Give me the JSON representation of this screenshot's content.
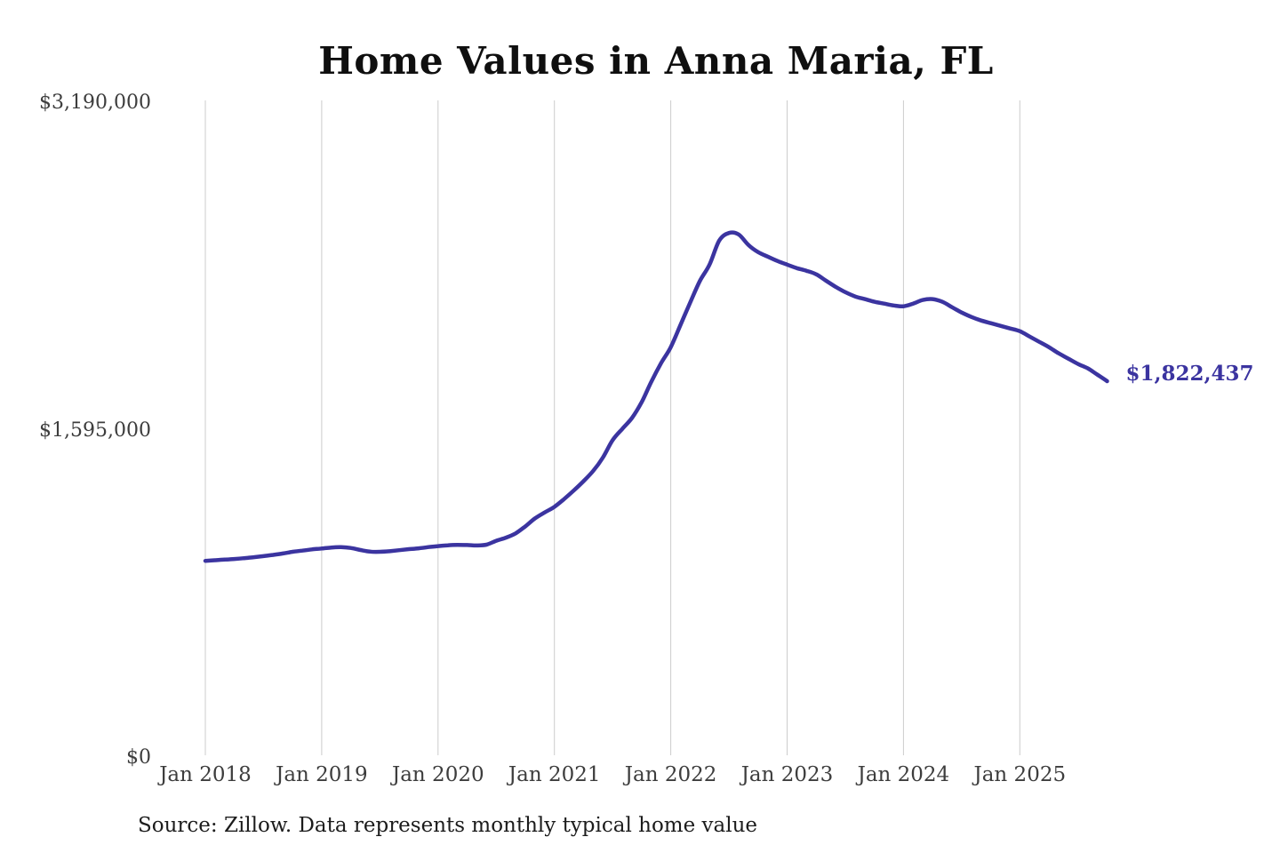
{
  "page": {
    "title": "Home Values in Anna Maria, FL",
    "source_note": "Source: Zillow. Data represents monthly typical home value"
  },
  "chart_data": {
    "type": "line",
    "title": "Home Values in Anna Maria, FL",
    "xlabel": "",
    "ylabel": "",
    "grid": "vertical-only",
    "legend": "none",
    "ylim": [
      0,
      3190000
    ],
    "y_ticks": [
      {
        "label": "$0",
        "value": 0
      },
      {
        "label": "$1,595,000",
        "value": 1595000
      },
      {
        "label": "$3,190,000",
        "value": 3190000
      }
    ],
    "x_tick_labels": [
      "Jan 2018",
      "Jan 2019",
      "Jan 2020",
      "Jan 2021",
      "Jan 2022",
      "Jan 2023",
      "Jan 2024",
      "Jan 2025"
    ],
    "end_label": "$1,822,437",
    "last_value": 1822437,
    "colors": {
      "line": "#3b34a0",
      "end_label": "#3b34a0",
      "grid": "#cccccc",
      "tick_text": "#3d3d3d",
      "title_text": "#0f0f0f",
      "source_text": "#1c1c1c"
    },
    "series": [
      {
        "name": "Monthly typical home value",
        "dates": [
          "2018-01",
          "2018-02",
          "2018-03",
          "2018-04",
          "2018-05",
          "2018-06",
          "2018-07",
          "2018-08",
          "2018-09",
          "2018-10",
          "2018-11",
          "2018-12",
          "2019-01",
          "2019-02",
          "2019-03",
          "2019-04",
          "2019-05",
          "2019-06",
          "2019-07",
          "2019-08",
          "2019-09",
          "2019-10",
          "2019-11",
          "2019-12",
          "2020-01",
          "2020-02",
          "2020-03",
          "2020-04",
          "2020-05",
          "2020-06",
          "2020-07",
          "2020-08",
          "2020-09",
          "2020-10",
          "2020-11",
          "2020-12",
          "2021-01",
          "2021-02",
          "2021-03",
          "2021-04",
          "2021-05",
          "2021-06",
          "2021-07",
          "2021-08",
          "2021-09",
          "2021-10",
          "2021-11",
          "2021-12",
          "2022-01",
          "2022-02",
          "2022-03",
          "2022-04",
          "2022-05",
          "2022-06",
          "2022-07",
          "2022-08",
          "2022-09",
          "2022-10",
          "2022-11",
          "2022-12",
          "2023-01",
          "2023-02",
          "2023-03",
          "2023-04",
          "2023-05",
          "2023-06",
          "2023-07",
          "2023-08",
          "2023-09",
          "2023-10",
          "2023-11",
          "2023-12",
          "2024-01",
          "2024-02",
          "2024-03",
          "2024-04",
          "2024-05",
          "2024-06",
          "2024-07",
          "2024-08",
          "2024-09",
          "2024-10",
          "2024-11",
          "2024-12",
          "2025-01",
          "2025-02",
          "2025-03",
          "2025-04",
          "2025-05",
          "2025-06",
          "2025-07",
          "2025-08",
          "2025-09",
          "2025-10"
        ],
        "values": [
          947000,
          950000,
          953000,
          956000,
          960000,
          965000,
          970000,
          976000,
          983000,
          991000,
          997000,
          1003000,
          1007000,
          1012000,
          1014000,
          1010000,
          1000000,
          992000,
          991000,
          994000,
          999000,
          1004000,
          1008000,
          1014000,
          1019000,
          1023000,
          1025000,
          1024000,
          1022000,
          1026000,
          1045000,
          1060000,
          1081000,
          1115000,
          1154000,
          1183000,
          1210000,
          1248000,
          1290000,
          1335000,
          1385000,
          1450000,
          1535000,
          1590000,
          1643000,
          1720000,
          1820000,
          1910000,
          1988000,
          2096000,
          2205000,
          2310000,
          2390000,
          2507000,
          2544000,
          2537000,
          2486000,
          2451000,
          2429000,
          2408000,
          2390000,
          2373000,
          2360000,
          2343000,
          2312000,
          2282000,
          2256000,
          2235000,
          2222000,
          2209000,
          2200000,
          2191000,
          2187000,
          2200000,
          2218000,
          2222000,
          2209000,
          2183000,
          2157000,
          2135000,
          2118000,
          2105000,
          2092000,
          2079000,
          2066000,
          2040000,
          2014000,
          1988000,
          1958000,
          1932000,
          1906000,
          1885000,
          1854000,
          1822437
        ]
      }
    ]
  }
}
